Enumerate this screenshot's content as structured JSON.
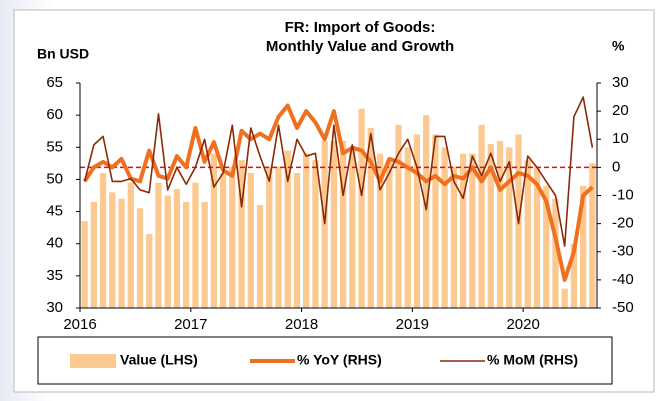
{
  "chart_data": {
    "type": "bar-line",
    "title": "FR: Import of Goods:",
    "subtitle": "Monthly Value and Growth",
    "y_label": "Bn USD",
    "y2_label": "%",
    "categories": [
      "2016",
      null,
      null,
      null,
      null,
      null,
      null,
      null,
      null,
      null,
      null,
      null,
      "2017",
      null,
      null,
      null,
      null,
      null,
      null,
      null,
      null,
      null,
      null,
      null,
      "2018",
      null,
      null,
      null,
      null,
      null,
      null,
      null,
      null,
      null,
      null,
      null,
      "2019",
      null,
      null,
      null,
      null,
      null,
      null,
      null,
      null,
      null,
      null,
      null,
      "2020",
      null,
      null,
      null,
      null,
      null,
      null,
      null
    ],
    "series": [
      {
        "name": "Value (LHS)",
        "color": "#fcc990",
        "kind": "bar",
        "values": [
          43.5,
          46.5,
          51,
          48,
          47,
          49.5,
          45.5,
          41.5,
          49.5,
          47.5,
          48.5,
          46.5,
          49.5,
          46.5,
          54,
          51,
          52,
          53,
          51,
          46,
          52,
          52,
          54.5,
          51,
          54,
          53,
          56,
          56,
          56,
          55,
          61,
          58,
          54,
          53,
          58.5,
          55,
          57,
          60,
          57,
          55,
          52,
          54,
          54,
          58.5,
          55.5,
          56,
          55,
          57,
          53,
          52,
          49,
          47,
          33,
          40,
          49,
          52.5
        ]
      },
      {
        "name": "% YoY (RHS)",
        "color": "#f07020",
        "kind": "line",
        "axis": "y2",
        "width": 4,
        "values": [
          -5,
          0,
          2,
          0,
          3,
          -4,
          -5,
          6,
          -3,
          -4,
          4,
          0,
          14,
          2,
          9,
          -1,
          -3,
          13,
          10,
          12,
          10,
          18,
          22,
          14,
          20,
          16,
          10,
          20,
          5,
          7,
          6,
          2,
          -5,
          3,
          2,
          0,
          -2,
          -5,
          -3,
          -6,
          -3,
          -4,
          0,
          -5,
          0,
          -8,
          -5,
          -2,
          -3,
          -6,
          -12,
          -25,
          -40,
          -30,
          -10,
          -7
        ]
      },
      {
        "name": "% MoM (RHS)",
        "color": "#8b2a08",
        "kind": "line",
        "axis": "y2",
        "width": 1.6,
        "values": [
          -5,
          8,
          11,
          -5,
          -5,
          -4,
          -8,
          -9,
          19,
          -8,
          0,
          -6,
          0,
          10,
          -7,
          -2,
          15,
          -14,
          14,
          4,
          -5,
          15,
          -5,
          10,
          4,
          5,
          -20,
          15,
          -10,
          8,
          -10,
          12,
          -8,
          -2,
          5,
          10,
          0,
          -15,
          11,
          11,
          -5,
          -11,
          4,
          -3,
          5,
          -5,
          2,
          -20,
          4,
          0,
          -5,
          -10,
          -28,
          18,
          25,
          7
        ]
      }
    ],
    "ylim": [
      30,
      65
    ],
    "yticks": [
      30,
      35,
      40,
      45,
      50,
      55,
      60,
      65
    ],
    "y2lim": [
      -50,
      30
    ],
    "y2ticks": [
      -50,
      -40,
      -30,
      -20,
      -10,
      0,
      10,
      20,
      30
    ],
    "zero_line": {
      "value": 0,
      "axis": "y2",
      "color": "#e01010"
    },
    "legend": "bottom"
  }
}
